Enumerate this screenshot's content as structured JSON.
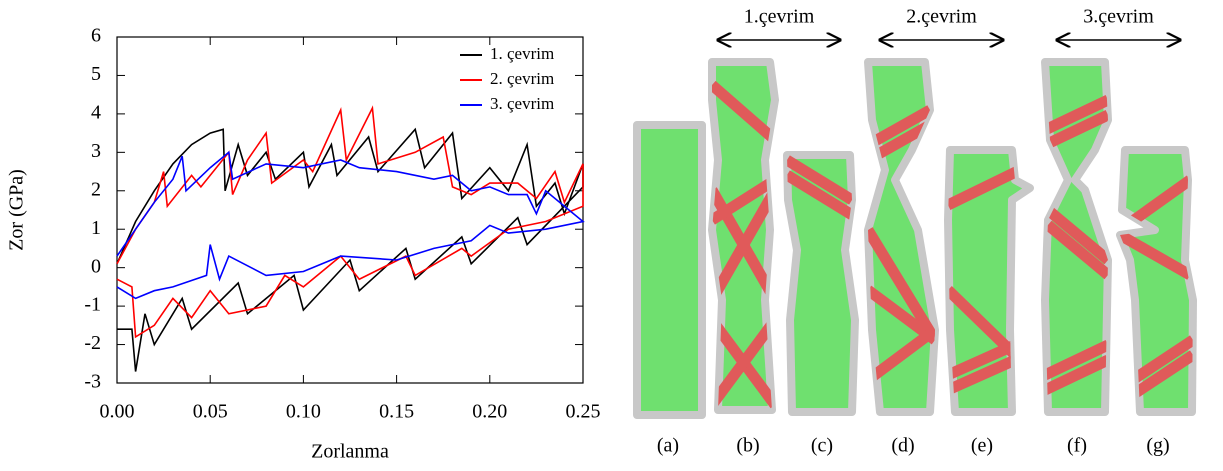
{
  "chart_data": {
    "type": "line",
    "xlabel": "Zorlanma",
    "ylabel": "Zor (GPa)",
    "xlim": [
      0,
      0.25
    ],
    "ylim": [
      -3,
      6
    ],
    "xticks": [
      {
        "value": 0,
        "label": "0.00"
      },
      {
        "value": 0.05,
        "label": "0.05"
      },
      {
        "value": 0.1,
        "label": "0.10"
      },
      {
        "value": 0.15,
        "label": "0.15"
      },
      {
        "value": 0.2,
        "label": "0.20"
      },
      {
        "value": 0.25,
        "label": "0.25"
      }
    ],
    "yticks": [
      -3,
      -2,
      -1,
      0,
      1,
      2,
      3,
      4,
      5,
      6
    ],
    "legend": "upper right",
    "series": [
      {
        "name": "1. çevrim",
        "color": "#000000",
        "x": [
          0,
          0.01,
          0.02,
          0.03,
          0.04,
          0.05,
          0.057,
          0.058,
          0.065,
          0.07,
          0.08,
          0.085,
          0.1,
          0.103,
          0.115,
          0.118,
          0.135,
          0.14,
          0.16,
          0.165,
          0.18,
          0.185,
          0.2,
          0.21,
          0.22,
          0.225,
          0.235,
          0.24,
          0.25,
          0.25,
          0.22,
          0.215,
          0.19,
          0.185,
          0.16,
          0.155,
          0.13,
          0.125,
          0.1,
          0.095,
          0.07,
          0.065,
          0.04,
          0.035,
          0.02,
          0.015,
          0.01,
          0.008,
          0
        ],
        "values": [
          0.1,
          1.2,
          2.0,
          2.7,
          3.2,
          3.5,
          3.6,
          2.0,
          3.2,
          2.4,
          3.0,
          2.3,
          3.0,
          2.1,
          3.2,
          2.4,
          3.4,
          2.5,
          3.6,
          2.6,
          3.5,
          1.8,
          2.6,
          2.0,
          3.2,
          1.6,
          2.2,
          1.4,
          2.7,
          2.1,
          0.6,
          1.3,
          0.1,
          0.8,
          -0.3,
          0.5,
          -0.6,
          0.2,
          -1.1,
          -0.2,
          -1.2,
          -0.4,
          -1.6,
          -0.8,
          -2.0,
          -1.2,
          -2.7,
          -1.6,
          -1.6
        ]
      },
      {
        "name": "2. çevrim",
        "color": "#ff0000",
        "x": [
          0,
          0.01,
          0.02,
          0.025,
          0.027,
          0.04,
          0.045,
          0.06,
          0.062,
          0.07,
          0.08,
          0.083,
          0.1,
          0.105,
          0.12,
          0.123,
          0.137,
          0.14,
          0.16,
          0.175,
          0.18,
          0.19,
          0.2,
          0.215,
          0.225,
          0.235,
          0.24,
          0.25,
          0.25,
          0.23,
          0.21,
          0.19,
          0.185,
          0.16,
          0.155,
          0.13,
          0.12,
          0.1,
          0.09,
          0.08,
          0.06,
          0.05,
          0.04,
          0.03,
          0.02,
          0.01,
          0.008,
          0
        ],
        "values": [
          0.1,
          1.0,
          1.7,
          2.5,
          1.6,
          2.4,
          2.1,
          3.0,
          1.9,
          2.8,
          3.5,
          2.2,
          2.8,
          2.5,
          4.1,
          2.8,
          4.15,
          2.7,
          3.0,
          3.4,
          2.1,
          1.9,
          2.2,
          2.2,
          1.8,
          2.5,
          1.7,
          2.7,
          1.6,
          1.2,
          1.0,
          0.3,
          0.5,
          -0.2,
          0.3,
          -0.3,
          0.3,
          -0.5,
          -0.2,
          -1.0,
          -1.2,
          -0.6,
          -1.3,
          -0.8,
          -1.5,
          -1.8,
          -0.5,
          -0.3
        ]
      },
      {
        "name": "3. çevrim",
        "color": "#0000ff",
        "x": [
          0,
          0.01,
          0.02,
          0.03,
          0.035,
          0.037,
          0.05,
          0.06,
          0.062,
          0.08,
          0.1,
          0.12,
          0.13,
          0.15,
          0.17,
          0.18,
          0.19,
          0.2,
          0.21,
          0.22,
          0.225,
          0.23,
          0.24,
          0.25,
          0.23,
          0.21,
          0.2,
          0.19,
          0.17,
          0.15,
          0.12,
          0.1,
          0.08,
          0.06,
          0.055,
          0.05,
          0.048,
          0.03,
          0.02,
          0.01,
          0
        ],
        "values": [
          0.3,
          1.0,
          1.7,
          2.3,
          2.9,
          2.0,
          2.6,
          3.0,
          2.3,
          2.7,
          2.6,
          2.8,
          2.6,
          2.5,
          2.3,
          2.4,
          2.0,
          2.1,
          1.9,
          1.9,
          1.4,
          2.0,
          1.6,
          1.2,
          1.0,
          0.9,
          1.1,
          0.7,
          0.5,
          0.2,
          0.3,
          -0.1,
          -0.2,
          0.3,
          -0.3,
          0.6,
          -0.2,
          -0.5,
          -0.6,
          -0.8,
          -0.5
        ]
      }
    ]
  },
  "figure": {
    "cycle_labels": [
      "1.çevrim",
      "2.çevrim",
      "3.çevrim"
    ],
    "panel_labels": [
      "(a)",
      "(b)",
      "(c)",
      "(d)",
      "(e)",
      "(f)",
      "(g)"
    ]
  }
}
